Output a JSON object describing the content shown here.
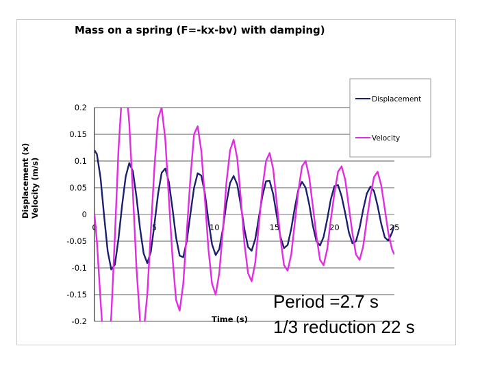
{
  "chart_data": {
    "type": "line",
    "title": "Mass on a spring (F=-kx-bv) with damping)",
    "xlabel": "Time (s)",
    "ylabel_line1": "Displacement (x)",
    "ylabel_line2": "Velocity (m/s)",
    "xlim": [
      0,
      25
    ],
    "ylim": [
      -0.2,
      0.2
    ],
    "x_ticks": [
      "0",
      "5",
      "10",
      "15",
      "20",
      "25"
    ],
    "y_ticks": [
      "0.2",
      "0.15",
      "0.1",
      "0.05",
      "0",
      "-0.05",
      "-0.1",
      "-0.15",
      "-0.2"
    ],
    "grid": "horizontal",
    "legend_position": "top-right",
    "series": [
      {
        "name": "Displacement",
        "color": "#1a1f6e",
        "x": [
          0.0,
          0.2,
          0.5,
          0.8,
          1.1,
          1.4,
          1.7,
          2.0,
          2.3,
          2.6,
          2.9,
          3.2,
          3.5,
          3.8,
          4.1,
          4.4,
          4.7,
          5.0,
          5.3,
          5.6,
          5.9,
          6.2,
          6.5,
          6.8,
          7.1,
          7.4,
          7.7,
          8.0,
          8.3,
          8.6,
          8.9,
          9.2,
          9.5,
          9.8,
          10.1,
          10.4,
          10.7,
          11.0,
          11.3,
          11.6,
          11.9,
          12.2,
          12.5,
          12.8,
          13.1,
          13.4,
          13.7,
          14.0,
          14.3,
          14.6,
          14.9,
          15.2,
          15.5,
          15.8,
          16.1,
          16.4,
          16.7,
          17.0,
          17.3,
          17.6,
          17.9,
          18.2,
          18.5,
          18.8,
          19.1,
          19.4,
          19.7,
          20.0,
          20.3,
          20.6,
          20.9,
          21.2,
          21.5,
          21.8,
          22.1,
          22.4,
          22.7,
          23.0,
          23.3,
          23.6,
          23.9,
          24.2,
          24.5,
          24.8,
          25.0
        ],
        "values": [
          0.12,
          0.113,
          0.069,
          -0.002,
          -0.069,
          -0.103,
          -0.094,
          -0.046,
          0.017,
          0.071,
          0.096,
          0.081,
          0.033,
          -0.027,
          -0.073,
          -0.091,
          -0.07,
          -0.018,
          0.039,
          0.078,
          0.086,
          0.061,
          0.011,
          -0.043,
          -0.077,
          -0.08,
          -0.049,
          0.002,
          0.05,
          0.077,
          0.073,
          0.04,
          -0.011,
          -0.056,
          -0.076,
          -0.065,
          -0.027,
          0.021,
          0.059,
          0.072,
          0.056,
          0.017,
          -0.028,
          -0.061,
          -0.068,
          -0.046,
          -0.006,
          0.035,
          0.062,
          0.063,
          0.038,
          -0.003,
          -0.042,
          -0.063,
          -0.057,
          -0.027,
          0.013,
          0.047,
          0.061,
          0.05,
          0.019,
          -0.021,
          -0.05,
          -0.058,
          -0.042,
          -0.009,
          0.028,
          0.053,
          0.055,
          0.034,
          0.002,
          -0.033,
          -0.054,
          -0.05,
          -0.025,
          0.009,
          0.039,
          0.052,
          0.044,
          0.016,
          -0.017,
          -0.043,
          -0.049,
          -0.034,
          -0.02
        ]
      },
      {
        "name": "Velocity",
        "color": "#e22be2",
        "x": [
          0.0,
          0.2,
          0.5,
          0.8,
          1.1,
          1.4,
          1.7,
          2.0,
          2.3,
          2.6,
          2.9,
          3.2,
          3.5,
          3.8,
          4.1,
          4.4,
          4.7,
          5.0,
          5.3,
          5.6,
          5.9,
          6.2,
          6.5,
          6.8,
          7.1,
          7.4,
          7.7,
          8.0,
          8.3,
          8.6,
          8.9,
          9.2,
          9.5,
          9.8,
          10.1,
          10.4,
          10.7,
          11.0,
          11.3,
          11.6,
          11.9,
          12.2,
          12.5,
          12.8,
          13.1,
          13.4,
          13.7,
          14.0,
          14.3,
          14.6,
          14.9,
          15.2,
          15.5,
          15.8,
          16.1,
          16.4,
          16.7,
          17.0,
          17.3,
          17.6,
          17.9,
          18.2,
          18.5,
          18.8,
          19.1,
          19.4,
          19.7,
          20.0,
          20.3,
          20.6,
          20.9,
          21.2,
          21.5,
          21.8,
          22.1,
          22.4,
          22.7,
          23.0,
          23.3,
          23.6,
          23.9,
          24.2,
          24.5,
          24.8,
          25.0
        ],
        "values": [
          0.0,
          -0.05,
          -0.16,
          -0.26,
          -0.27,
          -0.19,
          -0.04,
          0.12,
          0.23,
          0.25,
          0.17,
          0.04,
          -0.1,
          -0.2,
          -0.22,
          -0.15,
          -0.03,
          0.09,
          0.18,
          0.2,
          0.14,
          0.03,
          -0.08,
          -0.16,
          -0.18,
          -0.13,
          -0.03,
          0.07,
          0.15,
          0.165,
          0.12,
          0.03,
          -0.065,
          -0.13,
          -0.15,
          -0.11,
          -0.03,
          0.06,
          0.12,
          0.14,
          0.105,
          0.03,
          -0.055,
          -0.11,
          -0.125,
          -0.09,
          -0.02,
          0.05,
          0.1,
          0.115,
          0.085,
          0.02,
          -0.045,
          -0.095,
          -0.105,
          -0.075,
          -0.015,
          0.045,
          0.09,
          0.1,
          0.07,
          0.015,
          -0.04,
          -0.085,
          -0.095,
          -0.065,
          -0.01,
          0.04,
          0.08,
          0.09,
          0.065,
          0.015,
          -0.035,
          -0.075,
          -0.085,
          -0.06,
          -0.01,
          0.035,
          0.07,
          0.08,
          0.055,
          0.01,
          -0.035,
          -0.065,
          -0.075
        ]
      }
    ],
    "annotations": [
      "Period =2.7 s",
      "1/3  reduction 22 s"
    ]
  }
}
